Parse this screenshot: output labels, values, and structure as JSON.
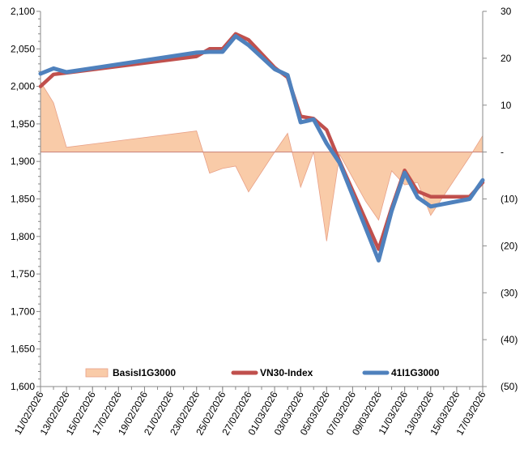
{
  "chart_data": {
    "type": "line",
    "x_tick_labels": [
      "11/02/2026",
      "13/02/2026",
      "15/02/2026",
      "17/02/2026",
      "19/02/2026",
      "21/02/2026",
      "23/02/2026",
      "25/02/2026",
      "27/02/2026",
      "01/03/2026",
      "03/03/2026",
      "05/03/2026",
      "07/03/2026",
      "09/03/2026",
      "11/03/2026",
      "13/03/2026",
      "15/03/2026",
      "17/03/2026"
    ],
    "y_left_ticks": [
      "1,600",
      "1,650",
      "1,700",
      "1,750",
      "1,800",
      "1,850",
      "1,900",
      "1,950",
      "2,000",
      "2,050",
      "2,100"
    ],
    "y_left_range": [
      1600,
      2100
    ],
    "y_right_ticks": [
      "(50)",
      "(40)",
      "(30)",
      "(20)",
      "(10)",
      "-",
      "10",
      "20",
      "30"
    ],
    "y_right_range": [
      -50,
      30
    ],
    "grid": false,
    "legend_position": "bottom-inside",
    "series": [
      {
        "name": "BasisI1G3000",
        "kind": "area",
        "axis": "right",
        "color": "#f9cba8",
        "stroke": "#e8a087",
        "points": [
          [
            "11/02/2026",
            15
          ],
          [
            "12/02/2026",
            10.5
          ],
          [
            "13/02/2026",
            1
          ],
          [
            "23/02/2026",
            4.5
          ],
          [
            "24/02/2026",
            -4.5
          ],
          [
            "25/02/2026",
            -3.5
          ],
          [
            "26/02/2026",
            -3
          ],
          [
            "27/02/2026",
            -8.5
          ],
          [
            "01/03/2026",
            0
          ],
          [
            "02/03/2026",
            4
          ],
          [
            "03/03/2026",
            -7.5
          ],
          [
            "04/03/2026",
            0
          ],
          [
            "05/03/2026",
            -19
          ],
          [
            "06/03/2026",
            -0.5
          ],
          [
            "08/03/2026",
            -10.5
          ],
          [
            "09/03/2026",
            -14.5
          ],
          [
            "10/03/2026",
            -4
          ],
          [
            "11/03/2026",
            -7
          ],
          [
            "12/03/2026",
            -6.5
          ],
          [
            "13/03/2026",
            -13.5
          ],
          [
            "16/03/2026",
            -1
          ],
          [
            "17/03/2026",
            3.5
          ]
        ]
      },
      {
        "name": "VN30-Index",
        "kind": "line",
        "axis": "left",
        "color": "#c0504d",
        "points": [
          [
            "11/02/2026",
            2000
          ],
          [
            "12/02/2026",
            2016
          ],
          [
            "13/02/2026",
            2018
          ],
          [
            "23/02/2026",
            2040
          ],
          [
            "24/02/2026",
            2050
          ],
          [
            "25/02/2026",
            2050
          ],
          [
            "26/02/2026",
            2070
          ],
          [
            "27/02/2026",
            2062
          ],
          [
            "01/03/2026",
            2025
          ],
          [
            "02/03/2026",
            2012
          ],
          [
            "03/03/2026",
            1960
          ],
          [
            "04/03/2026",
            1957
          ],
          [
            "05/03/2026",
            1942
          ],
          [
            "06/03/2026",
            1900
          ],
          [
            "09/03/2026",
            1783
          ],
          [
            "10/03/2026",
            1838
          ],
          [
            "11/03/2026",
            1888
          ],
          [
            "12/03/2026",
            1860
          ],
          [
            "13/03/2026",
            1853
          ],
          [
            "16/03/2026",
            1853
          ],
          [
            "17/03/2026",
            1872
          ]
        ]
      },
      {
        "name": "41I1G3000",
        "kind": "line",
        "axis": "left",
        "color": "#4f81bd",
        "points": [
          [
            "11/02/2026",
            2017
          ],
          [
            "12/02/2026",
            2024
          ],
          [
            "13/02/2026",
            2019
          ],
          [
            "23/02/2026",
            2045
          ],
          [
            "24/02/2026",
            2046
          ],
          [
            "25/02/2026",
            2046
          ],
          [
            "26/02/2026",
            2067
          ],
          [
            "27/02/2026",
            2055
          ],
          [
            "01/03/2026",
            2023
          ],
          [
            "02/03/2026",
            2015
          ],
          [
            "03/03/2026",
            1952
          ],
          [
            "04/03/2026",
            1956
          ],
          [
            "05/03/2026",
            1924
          ],
          [
            "06/03/2026",
            1898
          ],
          [
            "09/03/2026",
            1768
          ],
          [
            "10/03/2026",
            1834
          ],
          [
            "11/03/2026",
            1885
          ],
          [
            "12/03/2026",
            1852
          ],
          [
            "13/03/2026",
            1840
          ],
          [
            "16/03/2026",
            1850
          ],
          [
            "17/03/2026",
            1875
          ]
        ]
      }
    ]
  }
}
